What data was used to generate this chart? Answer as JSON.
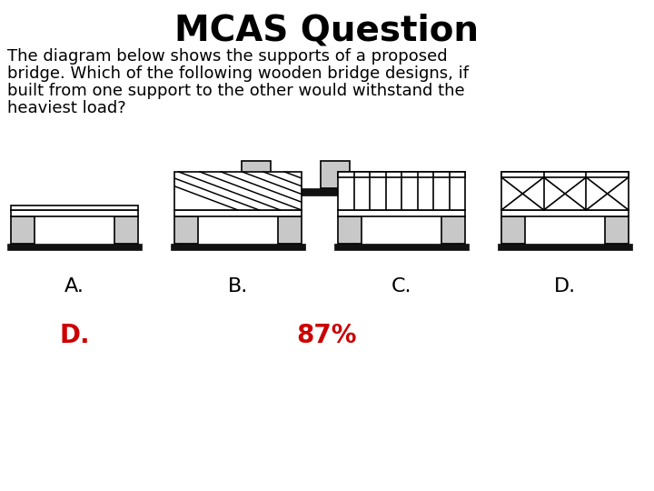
{
  "title": "MCAS Question",
  "title_fontsize": 28,
  "body_text": "The diagram below shows the supports of a proposed bridge. Which of the following wooden bridge designs, if built from one support to the other would withstand the heaviest load?",
  "body_fontsize": 13,
  "answer_label": "D.",
  "answer_color": "#cc0000",
  "percent_label": "87%",
  "percent_color": "#cc0000",
  "answer_fontsize": 18,
  "labels": [
    "A.",
    "B.",
    "C.",
    "D."
  ],
  "bg_color": "#ffffff",
  "gray_color": "#c8c8c8",
  "dark_color": "#111111",
  "line_color": "#000000",
  "lw": 1.2
}
